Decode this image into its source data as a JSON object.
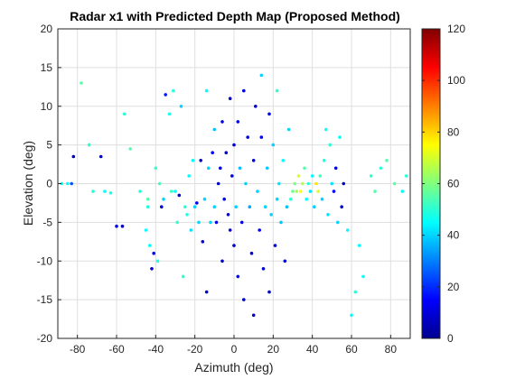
{
  "chart_data": {
    "type": "scatter",
    "title": "Radar x1 with Predicted Depth Map (Proposed Method)",
    "xlabel": "Azimuth (deg)",
    "ylabel": "Elevation (deg)",
    "xlim": [
      -90,
      90
    ],
    "ylim": [
      -20,
      20
    ],
    "xticks": [
      -80,
      -60,
      -40,
      -20,
      0,
      20,
      40,
      60,
      80
    ],
    "yticks": [
      -20,
      -15,
      -10,
      -5,
      0,
      5,
      10,
      15,
      20
    ],
    "grid": true,
    "colorbar": {
      "colormap": "jet",
      "clim": [
        0,
        120
      ],
      "ticks": [
        0,
        20,
        40,
        60,
        80,
        100,
        120
      ]
    },
    "points_format": [
      "azimuth_deg",
      "elevation_deg",
      "depth"
    ],
    "points": [
      [
        -88,
        0,
        45
      ],
      [
        -85,
        0,
        45
      ],
      [
        -83,
        0,
        25
      ],
      [
        -82,
        3.5,
        5
      ],
      [
        -78,
        13,
        55
      ],
      [
        -74,
        5,
        50
      ],
      [
        -72,
        -1,
        50
      ],
      [
        -68,
        3.5,
        8
      ],
      [
        -66,
        -1,
        45
      ],
      [
        -63,
        -1.2,
        48
      ],
      [
        -60,
        -5.5,
        12
      ],
      [
        -57,
        -5.5,
        8
      ],
      [
        -56,
        9,
        50
      ],
      [
        -53,
        4.5,
        55
      ],
      [
        -48,
        -1,
        50
      ],
      [
        -45,
        -6,
        45
      ],
      [
        -44,
        -2,
        55
      ],
      [
        -42,
        -11,
        8
      ],
      [
        -41,
        -9,
        15
      ],
      [
        -40,
        2,
        50
      ],
      [
        -38,
        0,
        52
      ],
      [
        -36,
        -2,
        40
      ],
      [
        -35,
        11.5,
        18
      ],
      [
        -33,
        9,
        48
      ],
      [
        -31,
        12,
        50
      ],
      [
        -30,
        -1,
        45
      ],
      [
        -29,
        -5,
        50
      ],
      [
        -28,
        -1.5,
        8
      ],
      [
        -27,
        10,
        40
      ],
      [
        -26,
        -12,
        50
      ],
      [
        -24,
        -4,
        48
      ],
      [
        -23,
        1,
        45
      ],
      [
        -22,
        -6,
        42
      ],
      [
        -21,
        3,
        44
      ],
      [
        -20,
        -3,
        40
      ],
      [
        -19,
        -2.5,
        15
      ],
      [
        -18,
        -5,
        40
      ],
      [
        -17,
        3,
        8
      ],
      [
        -16,
        -7.5,
        12
      ],
      [
        -15,
        -2,
        40
      ],
      [
        -14,
        -14,
        8
      ],
      [
        -14,
        12,
        45
      ],
      [
        -13,
        2,
        40
      ],
      [
        -12,
        -5,
        40
      ],
      [
        -11,
        4,
        15
      ],
      [
        -10,
        7,
        38
      ],
      [
        -10,
        -3,
        40
      ],
      [
        -9,
        -5,
        12
      ],
      [
        -8,
        0,
        8
      ],
      [
        -7,
        2,
        10
      ],
      [
        -6,
        -10,
        8
      ],
      [
        -6,
        8,
        12
      ],
      [
        -5,
        -2,
        14
      ],
      [
        -4,
        4,
        10
      ],
      [
        -3,
        -4,
        12
      ],
      [
        -2,
        11,
        8
      ],
      [
        -2,
        -6,
        10
      ],
      [
        -1,
        1,
        12
      ],
      [
        0,
        -8,
        8
      ],
      [
        0,
        5,
        10
      ],
      [
        1,
        -3,
        40
      ],
      [
        2,
        8,
        12
      ],
      [
        2,
        -12,
        10
      ],
      [
        3,
        2,
        38
      ],
      [
        4,
        -5,
        12
      ],
      [
        5,
        12,
        12
      ],
      [
        5,
        -15,
        8
      ],
      [
        6,
        0,
        40
      ],
      [
        7,
        6,
        12
      ],
      [
        8,
        -3,
        35
      ],
      [
        9,
        -9,
        10
      ],
      [
        10,
        3,
        12
      ],
      [
        10,
        -17,
        8
      ],
      [
        11,
        10,
        10
      ],
      [
        12,
        -1,
        40
      ],
      [
        13,
        -6,
        12
      ],
      [
        14,
        14,
        40
      ],
      [
        14,
        6,
        12
      ],
      [
        15,
        -11,
        10
      ],
      [
        16,
        -3,
        40
      ],
      [
        17,
        2,
        38
      ],
      [
        18,
        9,
        12
      ],
      [
        18,
        -14,
        8
      ],
      [
        19,
        -4,
        40
      ],
      [
        20,
        5,
        40
      ],
      [
        21,
        -8,
        12
      ],
      [
        22,
        12,
        50
      ],
      [
        22,
        -2,
        40
      ],
      [
        23,
        0,
        42
      ],
      [
        24,
        -5,
        38
      ],
      [
        25,
        3,
        45
      ],
      [
        26,
        -10,
        10
      ],
      [
        27,
        -3,
        38
      ],
      [
        28,
        7,
        40
      ],
      [
        29,
        -2,
        50
      ],
      [
        30,
        -1,
        58
      ],
      [
        31,
        0,
        60
      ],
      [
        32,
        -1,
        65
      ],
      [
        33,
        1,
        70
      ],
      [
        34,
        -1,
        75
      ],
      [
        35,
        0,
        66
      ],
      [
        36,
        2,
        55
      ],
      [
        37,
        -2,
        45
      ],
      [
        38,
        0,
        50
      ],
      [
        39,
        -1,
        42
      ],
      [
        40,
        1,
        45
      ],
      [
        41,
        -3,
        40
      ],
      [
        42,
        0,
        78
      ],
      [
        43,
        -1,
        70
      ],
      [
        44,
        1,
        52
      ],
      [
        45,
        -2,
        40
      ],
      [
        46,
        3,
        48
      ],
      [
        47,
        7,
        46
      ],
      [
        48,
        -4,
        42
      ],
      [
        49,
        5,
        50
      ],
      [
        50,
        0,
        42
      ],
      [
        51,
        -1,
        15
      ],
      [
        52,
        2,
        10
      ],
      [
        53,
        -5,
        40
      ],
      [
        54,
        6,
        45
      ],
      [
        55,
        -3,
        10
      ],
      [
        56,
        0,
        8
      ],
      [
        58,
        -6,
        45
      ],
      [
        60,
        -17,
        45
      ],
      [
        62,
        -14,
        50
      ],
      [
        64,
        -8,
        45
      ],
      [
        66,
        -12,
        45
      ],
      [
        70,
        1,
        50
      ],
      [
        72,
        -1,
        55
      ],
      [
        75,
        2,
        50
      ],
      [
        78,
        3,
        55
      ],
      [
        82,
        0,
        55
      ],
      [
        86,
        -1,
        45
      ],
      [
        88,
        1,
        50
      ],
      [
        -44,
        -3,
        48
      ],
      [
        -43,
        -8,
        45
      ],
      [
        -39,
        -10,
        48
      ],
      [
        -37,
        -3,
        10
      ],
      [
        -32,
        -1,
        52
      ],
      [
        -25,
        -3,
        50
      ]
    ]
  }
}
